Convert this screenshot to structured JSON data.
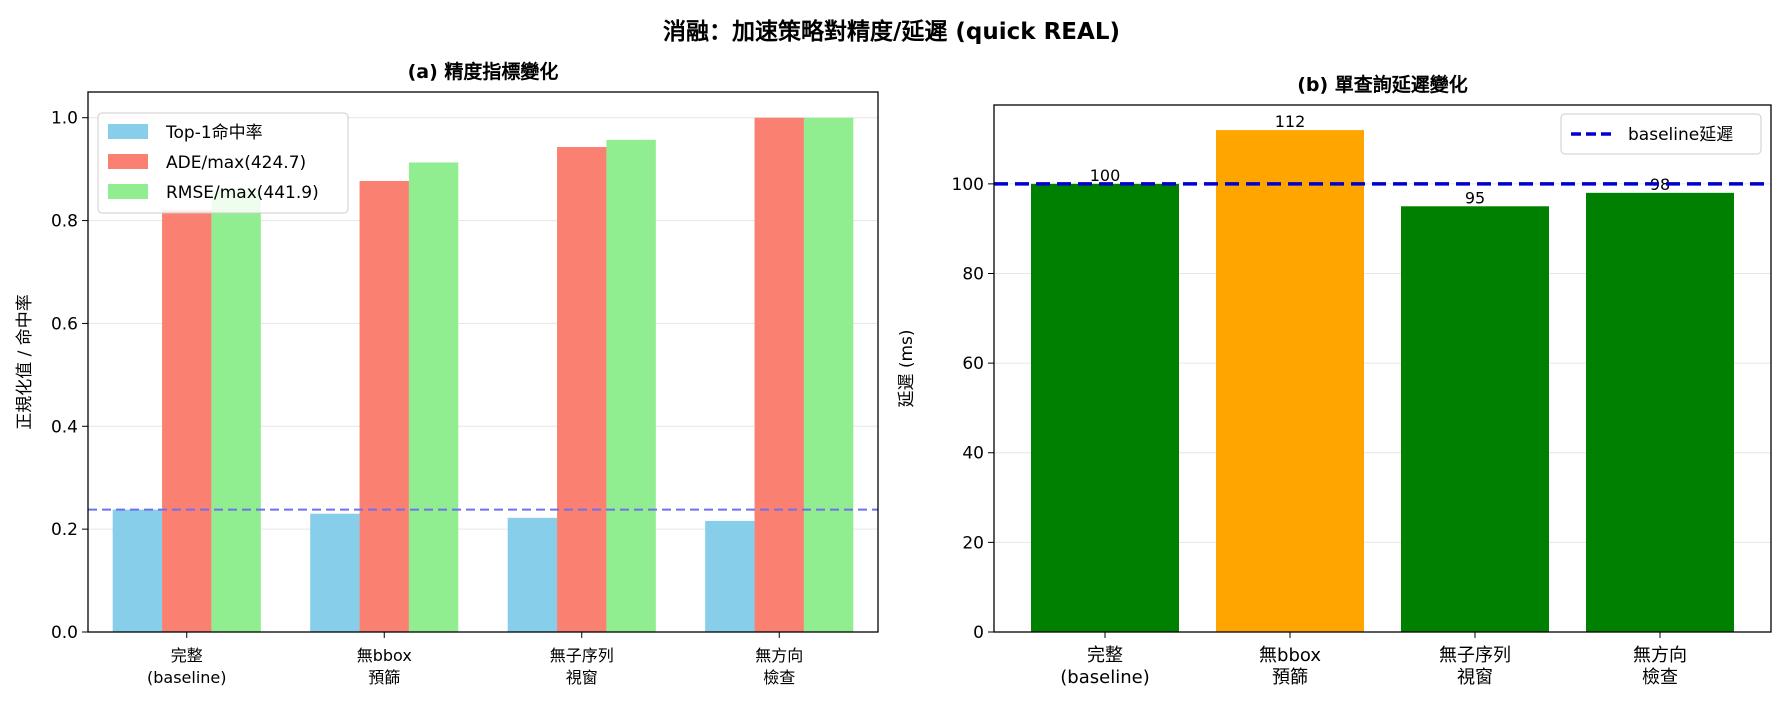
{
  "suptitle": "消融：加速策略對精度/延遲 (quick REAL)",
  "colors": {
    "top1": "#87ceeb",
    "ade": "#fa8072",
    "rmse": "#90ee90",
    "ref_line_a": "#6f6fef",
    "latency_ok": "#008000",
    "latency_slow": "#ffa500",
    "baseline_line": "#0000cd"
  },
  "chart_data": [
    {
      "type": "bar",
      "title": "(a) 精度指標變化",
      "xlabel": "",
      "ylabel": "正規化值 / 命中率",
      "ylim": [
        0,
        1.05
      ],
      "yticks": [
        "0.0",
        "0.2",
        "0.4",
        "0.6",
        "0.8",
        "1.0"
      ],
      "categories": [
        [
          "完整",
          "(baseline)"
        ],
        [
          "無bbox",
          "預篩"
        ],
        [
          "無子序列",
          "視窗"
        ],
        [
          "無方向",
          "檢查"
        ]
      ],
      "series": [
        {
          "name": "Top-1命中率",
          "color_key": "top1",
          "values": [
            0.238,
            0.23,
            0.222,
            0.216
          ]
        },
        {
          "name": "ADE/max(424.7)",
          "color_key": "ade",
          "values": [
            0.82,
            0.877,
            0.943,
            1.0
          ]
        },
        {
          "name": "RMSE/max(441.9)",
          "color_key": "rmse",
          "values": [
            0.86,
            0.913,
            0.957,
            1.0
          ]
        }
      ],
      "reference_line": {
        "y": 0.238,
        "style": "dashed"
      },
      "grid": "y",
      "legend": "top-left"
    },
    {
      "type": "bar",
      "title": "(b) 單查詢延遲變化",
      "xlabel": "",
      "ylabel": "延遲 (ms)",
      "ylim": [
        0,
        117.6
      ],
      "yticks": [
        "0",
        "20",
        "40",
        "60",
        "80",
        "100"
      ],
      "categories": [
        [
          "完整",
          "(baseline)"
        ],
        [
          "無bbox",
          "預篩"
        ],
        [
          "無子序列",
          "視窗"
        ],
        [
          "無方向",
          "檢查"
        ]
      ],
      "values": [
        100,
        112,
        95,
        98
      ],
      "data_labels": [
        "100",
        "112",
        "95",
        "98"
      ],
      "bar_color_keys": [
        "latency_ok",
        "latency_slow",
        "latency_ok",
        "latency_ok"
      ],
      "reference_line": {
        "y": 100,
        "style": "dashed",
        "name": "baseline延遲"
      },
      "grid": "y",
      "legend": "top-right"
    }
  ]
}
